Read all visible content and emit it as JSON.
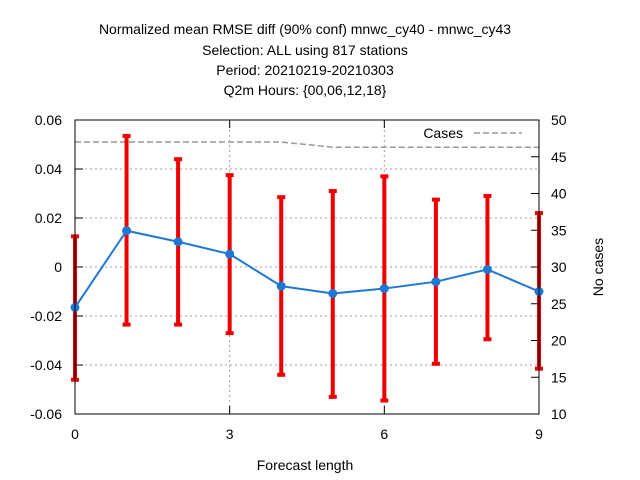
{
  "chart_data": {
    "type": "line",
    "title_lines": [
      "Normalized mean RMSE diff (90% conf) mnwc_cy40 - mnwc_cy43",
      "Selection: ALL using   817 stations",
      "Period: 20210219-20210303",
      "Q2m   Hours: {00,06,12,18}"
    ],
    "xlabel": "Forecast length",
    "ylabel": "",
    "y2label": "No cases",
    "xlim": [
      0,
      9
    ],
    "ylim": [
      -0.06,
      0.06
    ],
    "y2lim": [
      10,
      50
    ],
    "x_ticks": [
      0,
      3,
      6,
      9
    ],
    "y_ticks": [
      -0.06,
      -0.04,
      -0.02,
      0,
      0.02,
      0.04,
      0.06
    ],
    "y_tick_labels": [
      "-0.06",
      "-0.04",
      "-0.02",
      "0",
      "0.02",
      "0.04",
      "0.06"
    ],
    "y2_ticks": [
      10,
      15,
      20,
      25,
      30,
      35,
      40,
      45,
      50
    ],
    "grid": true,
    "legend": {
      "position": "top-right",
      "entries": [
        "Cases"
      ]
    },
    "series": [
      {
        "kind": "mean-with-errorbars",
        "color": "#1f77d4",
        "errorbar_color": "#ee0000",
        "x": [
          0,
          1,
          2,
          3,
          4,
          5,
          6,
          7,
          8,
          9
        ],
        "values": [
          -0.0165,
          0.0148,
          0.0103,
          0.0053,
          -0.0078,
          -0.0108,
          -0.0088,
          -0.006,
          -0.001,
          -0.01
        ],
        "lower": [
          -0.046,
          -0.0235,
          -0.0235,
          -0.027,
          -0.044,
          -0.053,
          -0.0545,
          -0.0395,
          -0.0295,
          -0.0415
        ],
        "upper": [
          0.0125,
          0.0535,
          0.044,
          0.0375,
          0.0285,
          0.031,
          0.037,
          0.0275,
          0.029,
          0.022
        ]
      },
      {
        "name": "Cases",
        "kind": "cases",
        "axis": "y2",
        "color": "#999999",
        "x": [
          0,
          1,
          2,
          3,
          4,
          5,
          6,
          7,
          8,
          9
        ],
        "values": [
          47,
          47,
          47,
          47,
          47,
          46.3,
          46.3,
          46.3,
          46.3,
          46.3
        ]
      }
    ]
  }
}
